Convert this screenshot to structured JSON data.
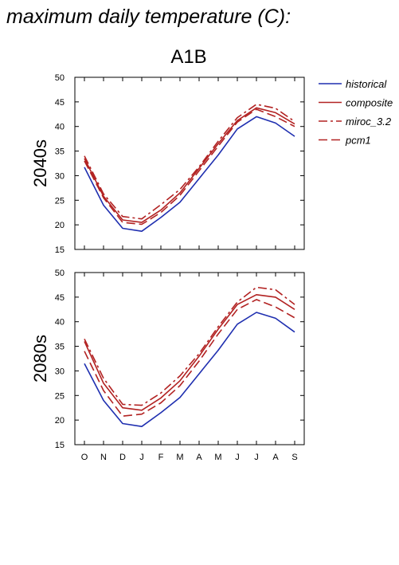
{
  "title": "maximum daily temperature (C):",
  "chart_data": {
    "type": "line",
    "scenario": "A1B",
    "months": [
      "O",
      "N",
      "D",
      "J",
      "F",
      "M",
      "A",
      "M",
      "J",
      "J",
      "A",
      "S"
    ],
    "ylim": [
      15,
      50
    ],
    "yticks": [
      15,
      20,
      25,
      30,
      35,
      40,
      45,
      50
    ],
    "legend_placement": "right",
    "legend": [
      {
        "name": "historical",
        "color": "#1f2fb0",
        "dash": "solid"
      },
      {
        "name": "composite",
        "color": "#b22222",
        "dash": "solid"
      },
      {
        "name": "miroc_3.2",
        "color": "#b22222",
        "dash": "dashdot"
      },
      {
        "name": "pcm1",
        "color": "#b22222",
        "dash": "dash"
      }
    ],
    "panels": [
      {
        "label": "2040s",
        "series": [
          {
            "name": "historical",
            "values": [
              31.7,
              24.0,
              19.3,
              18.7,
              21.5,
              24.6,
              29.4,
              34.2,
              39.5,
              42.0,
              40.7,
              38.0
            ]
          },
          {
            "name": "composite",
            "values": [
              33.5,
              25.8,
              21.0,
              20.5,
              23.0,
              26.5,
              31.5,
              36.5,
              41.2,
              43.8,
              42.8,
              40.5
            ]
          },
          {
            "name": "miroc_3.2",
            "values": [
              34.0,
              26.3,
              21.7,
              21.2,
              24.1,
              27.2,
              31.8,
              37.0,
              41.8,
              44.5,
              43.7,
              41.0
            ]
          },
          {
            "name": "pcm1",
            "values": [
              33.0,
              25.5,
              20.5,
              20.1,
              22.5,
              26.0,
              31.0,
              36.0,
              40.9,
              43.5,
              42.0,
              40.0
            ]
          }
        ]
      },
      {
        "label": "2080s",
        "series": [
          {
            "name": "historical",
            "values": [
              31.5,
              24.0,
              19.3,
              18.7,
              21.5,
              24.6,
              29.4,
              34.2,
              39.5,
              41.9,
              40.7,
              37.9
            ]
          },
          {
            "name": "composite",
            "values": [
              36.0,
              27.5,
              22.5,
              22.0,
              24.5,
              28.0,
              33.0,
              38.5,
              43.5,
              45.5,
              45.0,
              42.5
            ]
          },
          {
            "name": "miroc_3.2",
            "values": [
              36.5,
              28.5,
              23.2,
              23.0,
              25.5,
              29.0,
              33.5,
              39.0,
              44.0,
              47.0,
              46.5,
              43.5
            ]
          },
          {
            "name": "pcm1",
            "values": [
              34.0,
              26.0,
              20.8,
              21.2,
              23.5,
              27.0,
              32.0,
              37.5,
              42.5,
              44.5,
              43.0,
              40.8
            ]
          }
        ]
      }
    ]
  }
}
